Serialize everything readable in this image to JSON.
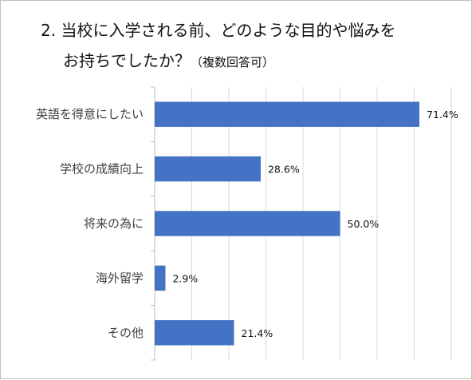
{
  "chart_data": {
    "type": "bar",
    "orientation": "horizontal",
    "title_line1": "2. 当校に入学される前、どのような目的や悩みを",
    "title_line2": "お持ちでしたか？",
    "title_note": "（複数回答可）",
    "categories": [
      "英語を得意にしたい",
      "学校の成績向上",
      "将来の為に",
      "海外留学",
      "その他"
    ],
    "values": [
      71.4,
      28.6,
      50.0,
      2.9,
      21.4
    ],
    "data_labels": [
      "71.4%",
      "28.6%",
      "50.0%",
      "2.9%",
      "21.4%"
    ],
    "xlim": [
      0,
      80
    ],
    "grid": true,
    "bar_color": "#4472c4"
  }
}
